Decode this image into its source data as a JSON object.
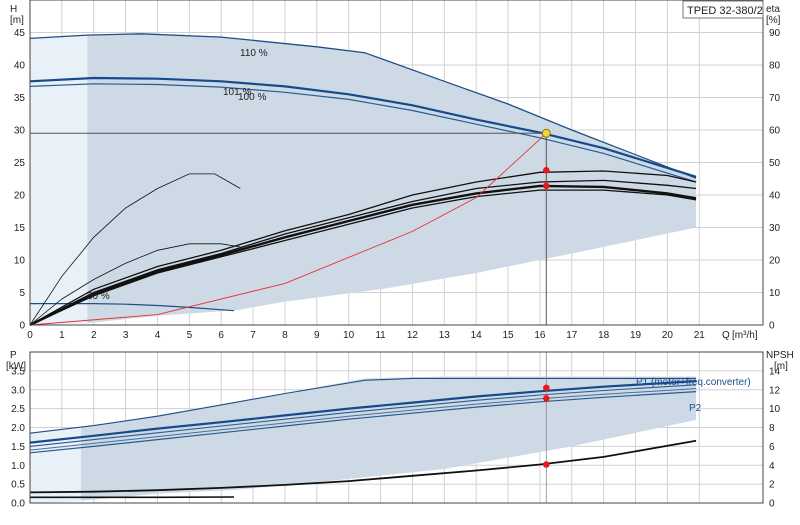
{
  "model_label": "TPED 32-380/2",
  "chart_data": [
    {
      "type": "line",
      "id": "head",
      "ylabel": "H",
      "yunit": "[m]",
      "y2label": "eta",
      "y2unit": "[%]",
      "xlabel": "Q",
      "xunit": "[m³/h]",
      "xlim": [
        0,
        23
      ],
      "ylim": [
        0,
        50
      ],
      "y2lim": [
        0,
        100
      ],
      "x_ticks": [
        0,
        1,
        2,
        3,
        4,
        5,
        6,
        7,
        8,
        9,
        10,
        11,
        12,
        13,
        14,
        15,
        16,
        17,
        18,
        19,
        20,
        21
      ],
      "y_ticks": [
        0,
        5,
        10,
        15,
        20,
        25,
        30,
        35,
        40,
        45
      ],
      "y2_ticks": [
        0,
        10,
        20,
        30,
        40,
        50,
        60,
        70,
        80,
        90
      ],
      "grid": true,
      "envelope": [
        [
          0,
          44
        ],
        [
          1.8,
          44.6
        ],
        [
          3.5,
          44.8
        ],
        [
          6,
          44.3
        ],
        [
          10.5,
          42
        ],
        [
          13,
          37.5
        ],
        [
          15,
          34
        ],
        [
          17,
          30
        ],
        [
          19,
          26
        ],
        [
          20.9,
          22.6
        ],
        [
          20.9,
          15
        ],
        [
          17,
          11
        ],
        [
          14,
          8
        ],
        [
          11,
          5.5
        ],
        [
          8,
          3.6
        ],
        [
          6.5,
          2.3
        ],
        [
          4,
          1.4
        ],
        [
          1.8,
          0.3
        ],
        [
          0,
          0
        ]
      ],
      "operating_point": {
        "q": 16.2,
        "h": 29.5
      },
      "series": [
        {
          "name": "110 %",
          "points": [
            [
              0,
              44.1
            ],
            [
              1.8,
              44.6
            ],
            [
              3.5,
              44.8
            ],
            [
              6,
              44.3
            ],
            [
              9,
              42.8
            ],
            [
              10.5,
              41.9
            ],
            [
              13,
              37.5
            ],
            [
              15,
              34
            ],
            [
              17,
              30
            ],
            [
              19,
              26.2
            ],
            [
              20.9,
              22.6
            ]
          ]
        },
        {
          "name": "101 %",
          "points": [
            [
              0,
              37.5
            ],
            [
              2,
              38
            ],
            [
              4,
              37.9
            ],
            [
              6,
              37.5
            ],
            [
              8,
              36.7
            ],
            [
              10,
              35.5
            ],
            [
              12,
              33.8
            ],
            [
              14,
              31.6
            ],
            [
              16,
              29.6
            ],
            [
              18,
              27.2
            ],
            [
              20.9,
              22.8
            ]
          ]
        },
        {
          "name": "100 %",
          "points": [
            [
              0,
              36.7
            ],
            [
              2,
              37.1
            ],
            [
              4,
              37
            ],
            [
              6,
              36.6
            ],
            [
              8,
              35.8
            ],
            [
              10,
              34.7
            ],
            [
              12,
              33
            ],
            [
              14,
              30.9
            ],
            [
              16,
              28.8
            ],
            [
              18,
              26.4
            ],
            [
              20.9,
              22
            ]
          ]
        },
        {
          "name": "30 %",
          "points": [
            [
              0,
              3.3
            ],
            [
              1,
              3.3
            ],
            [
              2,
              3.3
            ],
            [
              3,
              3.2
            ],
            [
              4,
              3
            ],
            [
              5,
              2.7
            ],
            [
              6.4,
              2.2
            ]
          ]
        },
        {
          "name": "",
          "points": [
            [
              0,
              23.5
            ],
            [
              0.8,
              24
            ],
            [
              1.6,
              24.2
            ],
            [
              16.2,
              24.2
            ],
            [
              20.8,
              22.2
            ]
          ],
          "hidden": true
        }
      ],
      "efficiency_curves": [
        {
          "points": [
            [
              0,
              0
            ],
            [
              1,
              15
            ],
            [
              2,
              27
            ],
            [
              3,
              36
            ],
            [
              4,
              42
            ],
            [
              5,
              46.5
            ],
            [
              5.8,
              46.5
            ],
            [
              6.6,
              42
            ]
          ],
          "thin": true
        },
        {
          "points": [
            [
              0,
              0
            ],
            [
              1,
              8
            ],
            [
              2,
              14
            ],
            [
              3,
              19
            ],
            [
              4,
              23
            ],
            [
              5,
              25
            ],
            [
              6,
              25
            ],
            [
              6.6,
              24
            ]
          ],
          "thin": true
        },
        {
          "points": [
            [
              0,
              0
            ],
            [
              2,
              11
            ],
            [
              4,
              18
            ],
            [
              6,
              23
            ],
            [
              8,
              29
            ],
            [
              10,
              34
            ],
            [
              12,
              40
            ],
            [
              14,
              44
            ],
            [
              16,
              47
            ],
            [
              18,
              47.4
            ],
            [
              20,
              46
            ],
            [
              20.9,
              44
            ]
          ]
        },
        {
          "points": [
            [
              0,
              0
            ],
            [
              2,
              10
            ],
            [
              4,
              17
            ],
            [
              6,
              22
            ],
            [
              8,
              28
            ],
            [
              10,
              33
            ],
            [
              12,
              38
            ],
            [
              14,
              42
            ],
            [
              16,
              44
            ],
            [
              18,
              44.5
            ],
            [
              20,
              43
            ],
            [
              20.9,
              42
            ]
          ]
        },
        {
          "points": [
            [
              0,
              0
            ],
            [
              2,
              9.5
            ],
            [
              4,
              16.5
            ],
            [
              6,
              21.5
            ],
            [
              8,
              27
            ],
            [
              10,
              32
            ],
            [
              12,
              37
            ],
            [
              14,
              40.5
            ],
            [
              16,
              42.8
            ],
            [
              18,
              42.5
            ],
            [
              20,
              40.5
            ],
            [
              20.9,
              39
            ]
          ],
          "thick": true
        },
        {
          "points": [
            [
              0,
              0
            ],
            [
              2,
              9
            ],
            [
              4,
              16
            ],
            [
              6,
              21
            ],
            [
              8,
              26
            ],
            [
              10,
              31
            ],
            [
              12,
              36
            ],
            [
              14,
              39.5
            ],
            [
              16,
              41.5
            ],
            [
              18,
              41.5
            ],
            [
              20,
              40
            ],
            [
              20.9,
              38.5
            ]
          ]
        }
      ],
      "system_curve": [
        [
          0,
          0
        ],
        [
          4,
          1.6
        ],
        [
          8,
          6.4
        ],
        [
          12,
          14.4
        ],
        [
          14,
          19.6
        ],
        [
          16.2,
          29.5
        ]
      ],
      "marker_points": [
        [
          16.2,
          47.6
        ],
        [
          16.2,
          42.8
        ]
      ]
    },
    {
      "type": "line",
      "id": "power",
      "ylabel": "P",
      "yunit": "[kW]",
      "y2label": "NPSH",
      "y2unit": "[m]",
      "ylim": [
        0,
        4
      ],
      "y2lim": [
        0,
        16
      ],
      "y_ticks": [
        0,
        0.5,
        1,
        1.5,
        2,
        2.5,
        3,
        3.5
      ],
      "y_tick_labels": [
        "0.0",
        "0.5",
        "1.0",
        "1.5",
        "2.0",
        "2.5",
        "3.0",
        "3.5"
      ],
      "y2_ticks": [
        0,
        2,
        4,
        6,
        8,
        10,
        12,
        14
      ],
      "grid": true,
      "envelope": [
        [
          0,
          1.85
        ],
        [
          2,
          2.05
        ],
        [
          6,
          2.6
        ],
        [
          10.5,
          3.3
        ],
        [
          13,
          3.35
        ],
        [
          20.9,
          3.35
        ],
        [
          20.9,
          2.2
        ],
        [
          17,
          1.5
        ],
        [
          13,
          0.9
        ],
        [
          9,
          0.55
        ],
        [
          6.5,
          0.35
        ],
        [
          4,
          0.25
        ],
        [
          1.5,
          0.05
        ],
        [
          0,
          0
        ]
      ],
      "series": [
        {
          "name": "P1 (motor+freq.converter)",
          "points": [
            [
              0,
              1.6
            ],
            [
              2,
              1.78
            ],
            [
              4,
              1.97
            ],
            [
              6,
              2.14
            ],
            [
              8,
              2.32
            ],
            [
              10,
              2.5
            ],
            [
              12,
              2.66
            ],
            [
              14,
              2.82
            ],
            [
              16,
              2.96
            ],
            [
              18,
              3.08
            ],
            [
              20.9,
              3.23
            ]
          ]
        },
        {
          "name": "",
          "points": [
            [
              0,
              1.5
            ],
            [
              2,
              1.68
            ],
            [
              4,
              1.86
            ],
            [
              6,
              2.04
            ],
            [
              8,
              2.22
            ],
            [
              10,
              2.4
            ],
            [
              12,
              2.56
            ],
            [
              14,
              2.72
            ],
            [
              16,
              2.86
            ],
            [
              18,
              2.98
            ],
            [
              20.9,
              3.13
            ]
          ]
        },
        {
          "name": "P2",
          "points": [
            [
              0,
              1.33
            ],
            [
              2,
              1.5
            ],
            [
              4,
              1.68
            ],
            [
              6,
              1.86
            ],
            [
              8,
              2.04
            ],
            [
              10,
              2.22
            ],
            [
              12,
              2.38
            ],
            [
              14,
              2.54
            ],
            [
              16,
              2.68
            ],
            [
              18,
              2.8
            ],
            [
              20.9,
              2.95
            ]
          ]
        },
        {
          "name": "",
          "points": [
            [
              0,
              1.4
            ],
            [
              2,
              1.58
            ],
            [
              4,
              1.76
            ],
            [
              6,
              1.94
            ],
            [
              8,
              2.12
            ],
            [
              10,
              2.3
            ],
            [
              12,
              2.46
            ],
            [
              14,
              2.62
            ],
            [
              16,
              2.76
            ],
            [
              18,
              2.88
            ],
            [
              20.9,
              3.03
            ]
          ]
        },
        {
          "name": "",
          "points": [
            [
              0,
              1.85
            ],
            [
              2,
              2.05
            ],
            [
              4,
              2.3
            ],
            [
              6,
              2.6
            ],
            [
              8,
              2.9
            ],
            [
              10.5,
              3.25
            ],
            [
              12,
              3.3
            ],
            [
              16,
              3.3
            ],
            [
              20.9,
              3.3
            ]
          ]
        }
      ],
      "npsh_curve": [
        [
          0,
          0.28
        ],
        [
          2,
          0.3
        ],
        [
          4,
          0.34
        ],
        [
          6,
          0.4
        ],
        [
          8,
          0.48
        ],
        [
          10,
          0.58
        ],
        [
          12,
          0.72
        ],
        [
          14,
          0.86
        ],
        [
          16,
          1.02
        ],
        [
          18,
          1.22
        ],
        [
          20.9,
          1.65
        ]
      ],
      "low_speed_curve": [
        [
          0,
          0.15
        ],
        [
          2,
          0.15
        ],
        [
          4,
          0.15
        ],
        [
          6.4,
          0.16
        ]
      ],
      "marker_points": [
        [
          16.2,
          3.05
        ],
        [
          16.2,
          2.77
        ],
        [
          16.2,
          1.02
        ]
      ]
    }
  ]
}
